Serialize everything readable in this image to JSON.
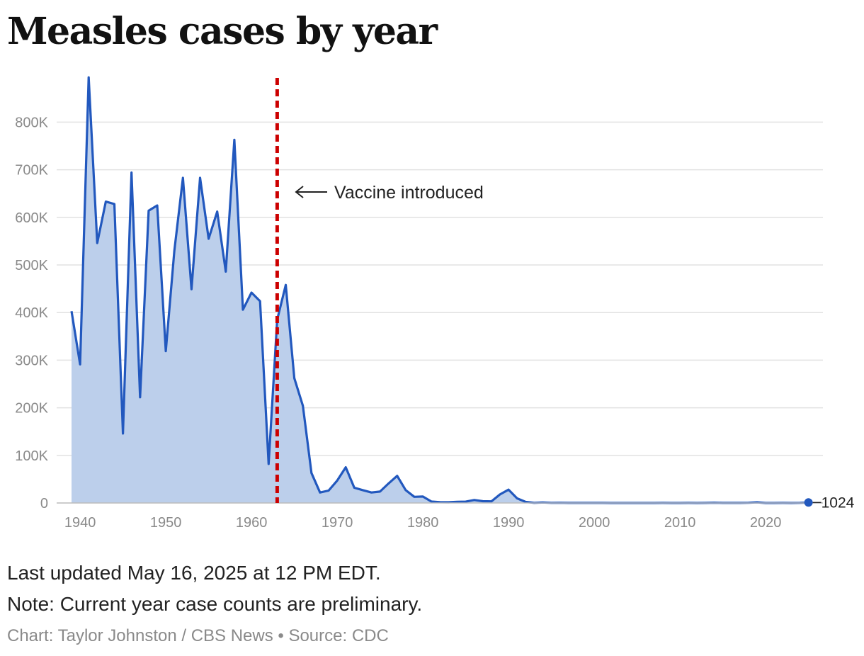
{
  "title": "Measles cases by year",
  "annotation": "Vaccine introduced",
  "footer": {
    "updated": "Last updated May 16, 2025 at 12 PM EDT.",
    "note": "Note: Current year case counts are preliminary.",
    "credit": "Chart: Taylor Johnston / CBS News • Source: CDC"
  },
  "colors": {
    "line": "#2258be",
    "area": "#bccfeb",
    "marker": "#cc0000",
    "grid": "#e2e2e2",
    "tick": "#8a8a8a"
  },
  "chart_data": {
    "type": "area",
    "title": "Measles cases by year",
    "xlabel": "",
    "ylabel": "",
    "x_ticks": [
      "1940",
      "1950",
      "1960",
      "1970",
      "1980",
      "1990",
      "2000",
      "2010",
      "2020"
    ],
    "y_ticks": [
      "0",
      "100K",
      "200K",
      "300K",
      "400K",
      "500K",
      "600K",
      "700K",
      "800K"
    ],
    "ylim": [
      0,
      900000
    ],
    "xlim": [
      1937,
      2027
    ],
    "grid": true,
    "vaccine_year": 1963,
    "end_label": "1024",
    "x": [
      1939,
      1940,
      1941,
      1942,
      1943,
      1944,
      1945,
      1946,
      1947,
      1948,
      1949,
      1950,
      1951,
      1952,
      1953,
      1954,
      1955,
      1956,
      1957,
      1958,
      1959,
      1960,
      1961,
      1962,
      1963,
      1964,
      1965,
      1966,
      1967,
      1968,
      1969,
      1970,
      1971,
      1972,
      1973,
      1974,
      1975,
      1976,
      1977,
      1978,
      1979,
      1980,
      1981,
      1982,
      1983,
      1984,
      1985,
      1986,
      1987,
      1988,
      1989,
      1990,
      1991,
      1992,
      1993,
      1994,
      1995,
      1996,
      1997,
      1998,
      1999,
      2000,
      2001,
      2002,
      2003,
      2004,
      2005,
      2006,
      2007,
      2008,
      2009,
      2010,
      2011,
      2012,
      2013,
      2014,
      2015,
      2016,
      2017,
      2018,
      2019,
      2020,
      2021,
      2022,
      2023,
      2024,
      2025
    ],
    "values": [
      403000,
      291000,
      894000,
      546000,
      633000,
      628000,
      146000,
      694000,
      222000,
      614000,
      625000,
      319000,
      530000,
      683000,
      449000,
      683000,
      555000,
      612000,
      486000,
      763000,
      406000,
      442000,
      424000,
      82000,
      385000,
      458000,
      262000,
      204000,
      63000,
      22000,
      26000,
      47000,
      75000,
      32000,
      27000,
      22000,
      24000,
      41000,
      57000,
      27000,
      13000,
      13500,
      3000,
      1700,
      1500,
      2600,
      2800,
      6300,
      3700,
      3400,
      18000,
      28000,
      9600,
      2200,
      300,
      1000,
      300,
      500,
      140,
      100,
      100,
      86,
      116,
      44,
      56,
      37,
      66,
      55,
      43,
      140,
      71,
      63,
      220,
      55,
      187,
      667,
      188,
      86,
      120,
      375,
      1274,
      13,
      49,
      121,
      59,
      285,
      1024
    ]
  }
}
